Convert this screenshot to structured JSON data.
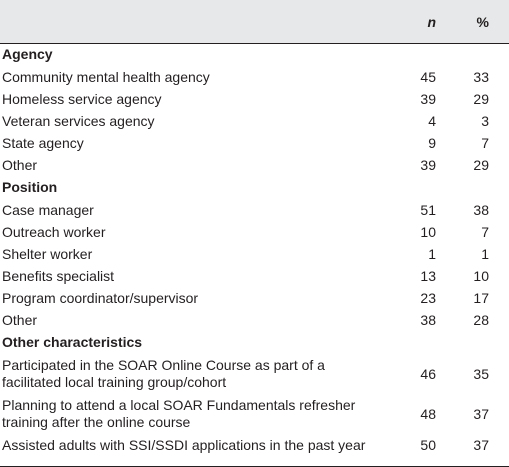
{
  "header": {
    "label": "",
    "n": "n",
    "pct": "%"
  },
  "sections": [
    {
      "title": "Agency",
      "rows": [
        {
          "label": "Community mental health agency",
          "n": "45",
          "pct": "33"
        },
        {
          "label": "Homeless service agency",
          "n": "39",
          "pct": "29"
        },
        {
          "label": "Veteran services agency",
          "n": "4",
          "pct": "3"
        },
        {
          "label": "State agency",
          "n": "9",
          "pct": "7"
        },
        {
          "label": "Other",
          "n": "39",
          "pct": "29"
        }
      ]
    },
    {
      "title": "Position",
      "rows": [
        {
          "label": "Case manager",
          "n": "51",
          "pct": "38"
        },
        {
          "label": "Outreach worker",
          "n": "10",
          "pct": "7"
        },
        {
          "label": "Shelter worker",
          "n": "1",
          "pct": "1"
        },
        {
          "label": "Benefits specialist",
          "n": "13",
          "pct": "10"
        },
        {
          "label": "Program coordinator/supervisor",
          "n": "23",
          "pct": "17"
        },
        {
          "label": "Other",
          "n": "38",
          "pct": "28"
        }
      ]
    },
    {
      "title": "Other characteristics",
      "rows": [
        {
          "label_line1": "Participated in the SOAR Online Course as part of a",
          "label_line2": "facilitated local training group/cohort",
          "n": "46",
          "pct": "35"
        },
        {
          "label_line1": "Planning to attend a local SOAR Fundamentals refresher",
          "label_line2": "training after the online course",
          "n": "48",
          "pct": "37"
        },
        {
          "label": "Assisted adults with SSI/SSDI applications in the past year",
          "n": "50",
          "pct": "37"
        }
      ]
    }
  ]
}
